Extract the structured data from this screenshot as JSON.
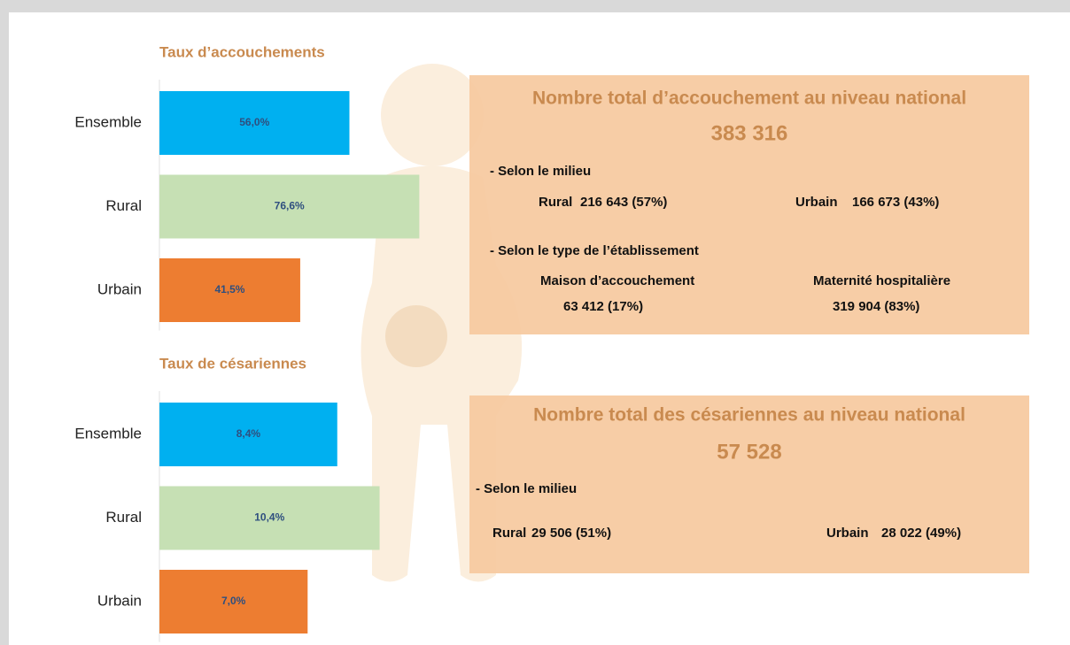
{
  "chart_data": [
    {
      "type": "bar",
      "orientation": "horizontal",
      "title": "Taux d’accouchements",
      "categories": [
        "Ensemble",
        "Rural",
        "Urbain"
      ],
      "values": [
        56.0,
        76.6,
        41.5
      ],
      "value_labels": [
        "56,0%",
        "76,6%",
        "41,5%"
      ],
      "colors": [
        "#00b0f0",
        "#c6e0b4",
        "#ed7d31"
      ]
    },
    {
      "type": "bar",
      "orientation": "horizontal",
      "title": "Taux de césariennes",
      "categories": [
        "Ensemble",
        "Rural",
        "Urbain"
      ],
      "values": [
        8.4,
        10.4,
        7.0
      ],
      "value_labels": [
        "8,4%",
        "10,4%",
        "7,0%"
      ],
      "colors": [
        "#00b0f0",
        "#c6e0b4",
        "#ed7d31"
      ]
    }
  ],
  "boxes": [
    {
      "title": "Nombre total d’accouchement au niveau national",
      "total": "383 316",
      "sections": [
        {
          "heading": "- Selon le milieu",
          "items": [
            {
              "label": "Rural",
              "value": "216 643 (57%)"
            },
            {
              "label": "Urbain",
              "value": "166 673 (43%)"
            }
          ]
        },
        {
          "heading": "- Selon le type de l’établissement",
          "items": [
            {
              "label": "Maison d’accouchement",
              "value": "63 412 (17%)"
            },
            {
              "label": "Maternité hospitalière",
              "value": "319 904 (83%)"
            }
          ]
        }
      ]
    },
    {
      "title": "Nombre total des césariennes au niveau national",
      "total": "57 528",
      "sections": [
        {
          "heading": "- Selon le milieu",
          "items": [
            {
              "label": "Rural",
              "value": "29 506 (51%)"
            },
            {
              "label": "Urbain",
              "value": "28 022 (49%)"
            }
          ]
        }
      ]
    }
  ]
}
